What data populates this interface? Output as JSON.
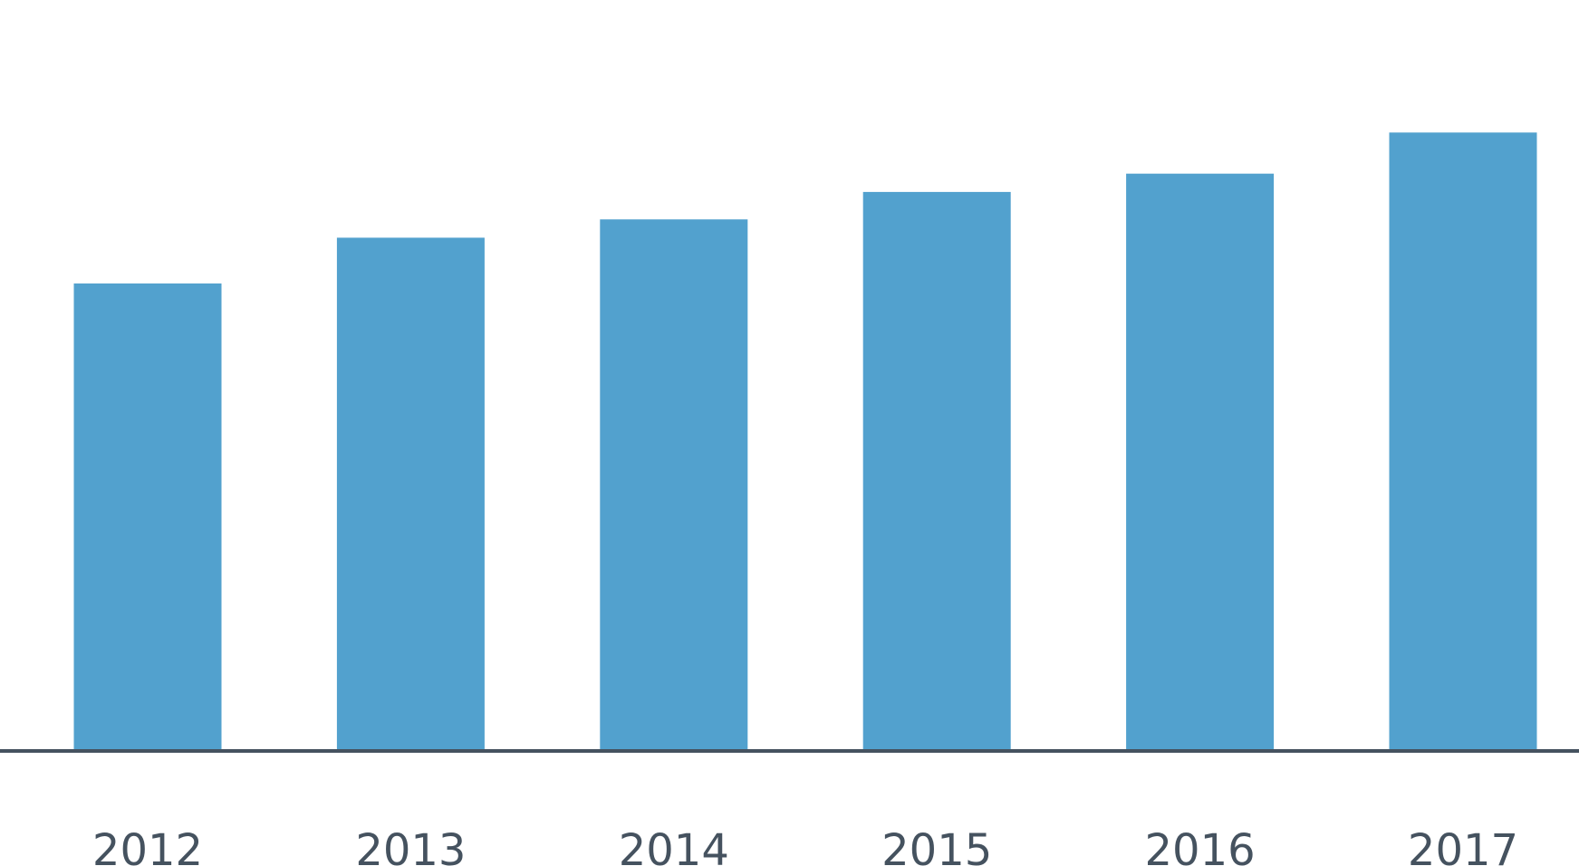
{
  "chart_data": {
    "type": "bar",
    "categories": [
      "2012",
      "2013",
      "2014",
      "2015",
      "2016",
      "2017"
    ],
    "values": [
      51,
      56,
      58,
      61,
      63,
      67.5
    ],
    "title": "",
    "xlabel": "",
    "ylabel": "",
    "ylim": [
      0,
      80
    ],
    "grid": false,
    "legend": "none",
    "colors": {
      "bar": "#52a1ce",
      "axis": "#45525f",
      "tick_text": "#45525f",
      "background": "#ffffff"
    }
  }
}
